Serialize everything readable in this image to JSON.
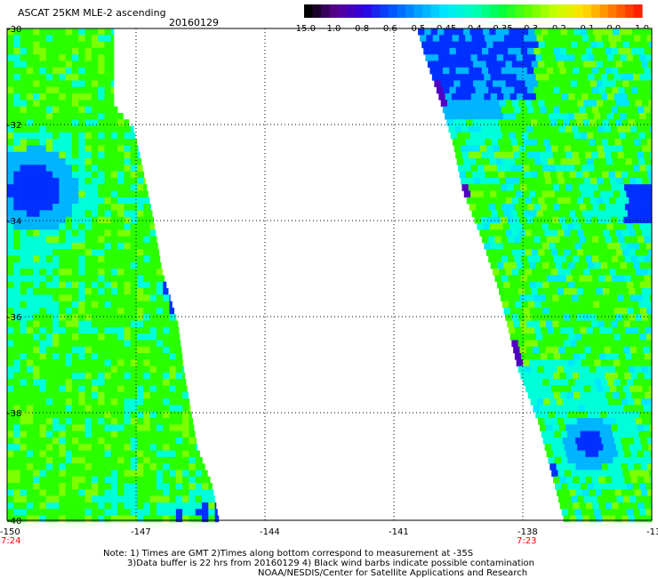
{
  "header": {
    "title": "ASCAT 25KM MLE-2 ascending",
    "date": "20160129"
  },
  "colorbar": {
    "labels": [
      "-15.0",
      "-1.0",
      "-0.8",
      "-0.6",
      "-0.5",
      "-0.45",
      "-0.4",
      "-0.35",
      "-0.3",
      "-0.2",
      "-0.1",
      "0.0",
      "1.0"
    ],
    "colors": [
      "#000000",
      "#5a0090",
      "#3000e0",
      "#0050ff",
      "#00a0ff",
      "#00e8ff",
      "#00ffc0",
      "#00ff40",
      "#60ff00",
      "#c8ff00",
      "#ffe000",
      "#ff8000",
      "#ff2000"
    ]
  },
  "map": {
    "lon_ticks": [
      "-150",
      "-147",
      "-144",
      "-141",
      "-138",
      "-13"
    ],
    "lat_ticks": [
      "-30",
      "-32",
      "-34",
      "-36",
      "-38",
      "-40"
    ],
    "time_labels": [
      {
        "text": "7:24",
        "lon": "-150"
      },
      {
        "text": "7:23",
        "lon": "-138"
      }
    ],
    "time_color": "#ff0000",
    "colors": {
      "green": "#2aff00",
      "lime": "#7cff00",
      "cyan": "#00ffd8",
      "aqua": "#00e8ff",
      "lightblue": "#00b4ff",
      "blue": "#0030ff",
      "violet": "#5000c0"
    }
  },
  "footer": {
    "line1": "Note: 1) Times are GMT 2)Times along bottom correspond to measurement at -35S",
    "line2": "3)Data buffer is 22 hrs from 20160129 4) Black wind barbs indicate possible contamination",
    "line3": "NOAA/NESDIS/Center for Satellite Applications and Research"
  }
}
